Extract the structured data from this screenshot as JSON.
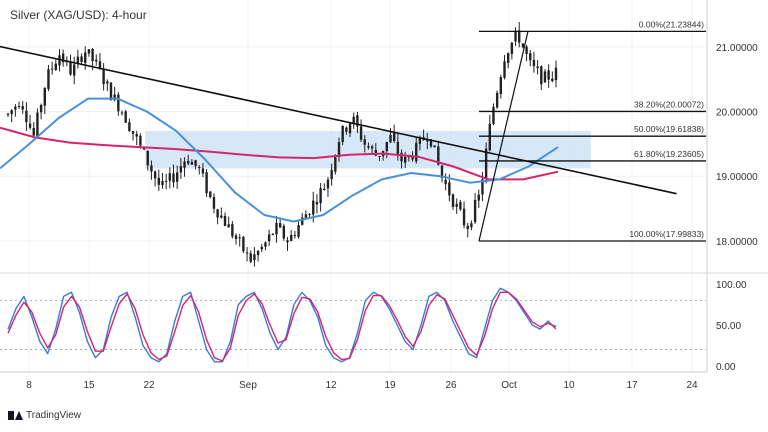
{
  "header": {
    "title": "Silver (XAG/USD): 4-hour"
  },
  "footer": {
    "brand": "TradingView"
  },
  "colors": {
    "candle": "#222222",
    "ma_fast": "#4a90d9",
    "ma_slow": "#d6246e",
    "zone": "#cfe3f7",
    "stoch_k": "#3a7bd5",
    "stoch_d": "#d6246e",
    "trendline": "#111111"
  },
  "chart_data": [
    {
      "type": "candlestick",
      "title": "Silver (XAG/USD): 4-hour",
      "x_ticks": [
        "8",
        "15",
        "22",
        "Sep",
        "12",
        "19",
        "26",
        "Oct",
        "10",
        "17",
        "24"
      ],
      "y_ticks": [
        "21.00000",
        "20.00000",
        "19.00000",
        "18.00000"
      ],
      "ylim": [
        17.55,
        21.6
      ],
      "close_path": [
        19.95,
        20.2,
        19.6,
        20.5,
        20.9,
        20.6,
        20.95,
        20.7,
        20.3,
        20.0,
        19.6,
        19.2,
        18.8,
        19.0,
        19.3,
        19.1,
        18.6,
        18.3,
        18.0,
        17.7,
        17.9,
        18.2,
        18.0,
        18.3,
        18.6,
        18.9,
        19.6,
        19.9,
        19.5,
        19.3,
        19.6,
        19.2,
        19.4,
        19.7,
        19.0,
        18.6,
        18.2,
        18.7,
        20.0,
        20.9,
        21.2,
        20.7,
        20.5,
        20.6
      ],
      "fibonacci": [
        {
          "label": "0.00%(21.23844)",
          "value": 21.23844
        },
        {
          "label": "38.20%(20.00072)",
          "value": 20.00072
        },
        {
          "label": "50.00%(19.61838)",
          "value": 19.61838
        },
        {
          "label": "61.80%(19.23605)",
          "value": 19.23605
        },
        {
          "label": "100.00%(17.99833)",
          "value": 17.99833
        }
      ],
      "trendline": {
        "from": [
          "Aug 1",
          21.15
        ],
        "to": [
          "Oct 24",
          18.73
        ]
      },
      "zone": {
        "from": "Aug 23",
        "to": "Oct 14",
        "low": 19.12,
        "high": 19.7
      },
      "ma_fast": [
        19.12,
        19.5,
        19.9,
        20.2,
        20.2,
        20.0,
        19.7,
        19.25,
        18.75,
        18.4,
        18.3,
        18.4,
        18.7,
        18.95,
        19.05,
        19.0,
        18.9,
        18.95,
        19.15,
        19.45
      ],
      "ma_slow": [
        19.75,
        19.6,
        19.52,
        19.48,
        19.45,
        19.42,
        19.38,
        19.33,
        19.29,
        19.28,
        19.33,
        19.35,
        19.3,
        19.15,
        18.95,
        18.95,
        19.07
      ]
    },
    {
      "type": "line",
      "title": "Stochastic",
      "y_ticks": [
        "100.00",
        "50.00",
        "0.00"
      ],
      "ylim": [
        -5,
        110
      ],
      "levels": [
        80,
        20
      ],
      "series": [
        {
          "values": [
            45,
            70,
            85,
            60,
            30,
            15,
            45,
            85,
            90,
            65,
            30,
            10,
            20,
            60,
            85,
            90,
            60,
            25,
            10,
            5,
            15,
            55,
            85,
            90,
            55,
            20,
            5,
            5,
            30,
            75,
            85,
            90,
            70,
            40,
            20,
            35,
            75,
            90,
            80,
            60,
            25,
            10,
            5,
            10,
            40,
            80,
            90,
            85,
            70,
            50,
            30,
            20,
            50,
            85,
            90,
            80,
            55,
            35,
            15,
            10,
            45,
            80,
            95,
            90,
            80,
            65,
            50,
            45,
            55,
            45
          ]
        },
        {
          "values": [
            40,
            62,
            78,
            66,
            40,
            22,
            38,
            72,
            85,
            72,
            42,
            18,
            18,
            48,
            76,
            88,
            70,
            38,
            16,
            8,
            12,
            42,
            74,
            86,
            66,
            32,
            10,
            6,
            22,
            62,
            80,
            88,
            76,
            50,
            28,
            32,
            64,
            84,
            82,
            66,
            36,
            16,
            8,
            9,
            32,
            68,
            86,
            86,
            74,
            56,
            36,
            24,
            42,
            74,
            87,
            82,
            62,
            42,
            22,
            13,
            36,
            70,
            90,
            90,
            82,
            68,
            54,
            48,
            52,
            48
          ]
        }
      ]
    }
  ]
}
